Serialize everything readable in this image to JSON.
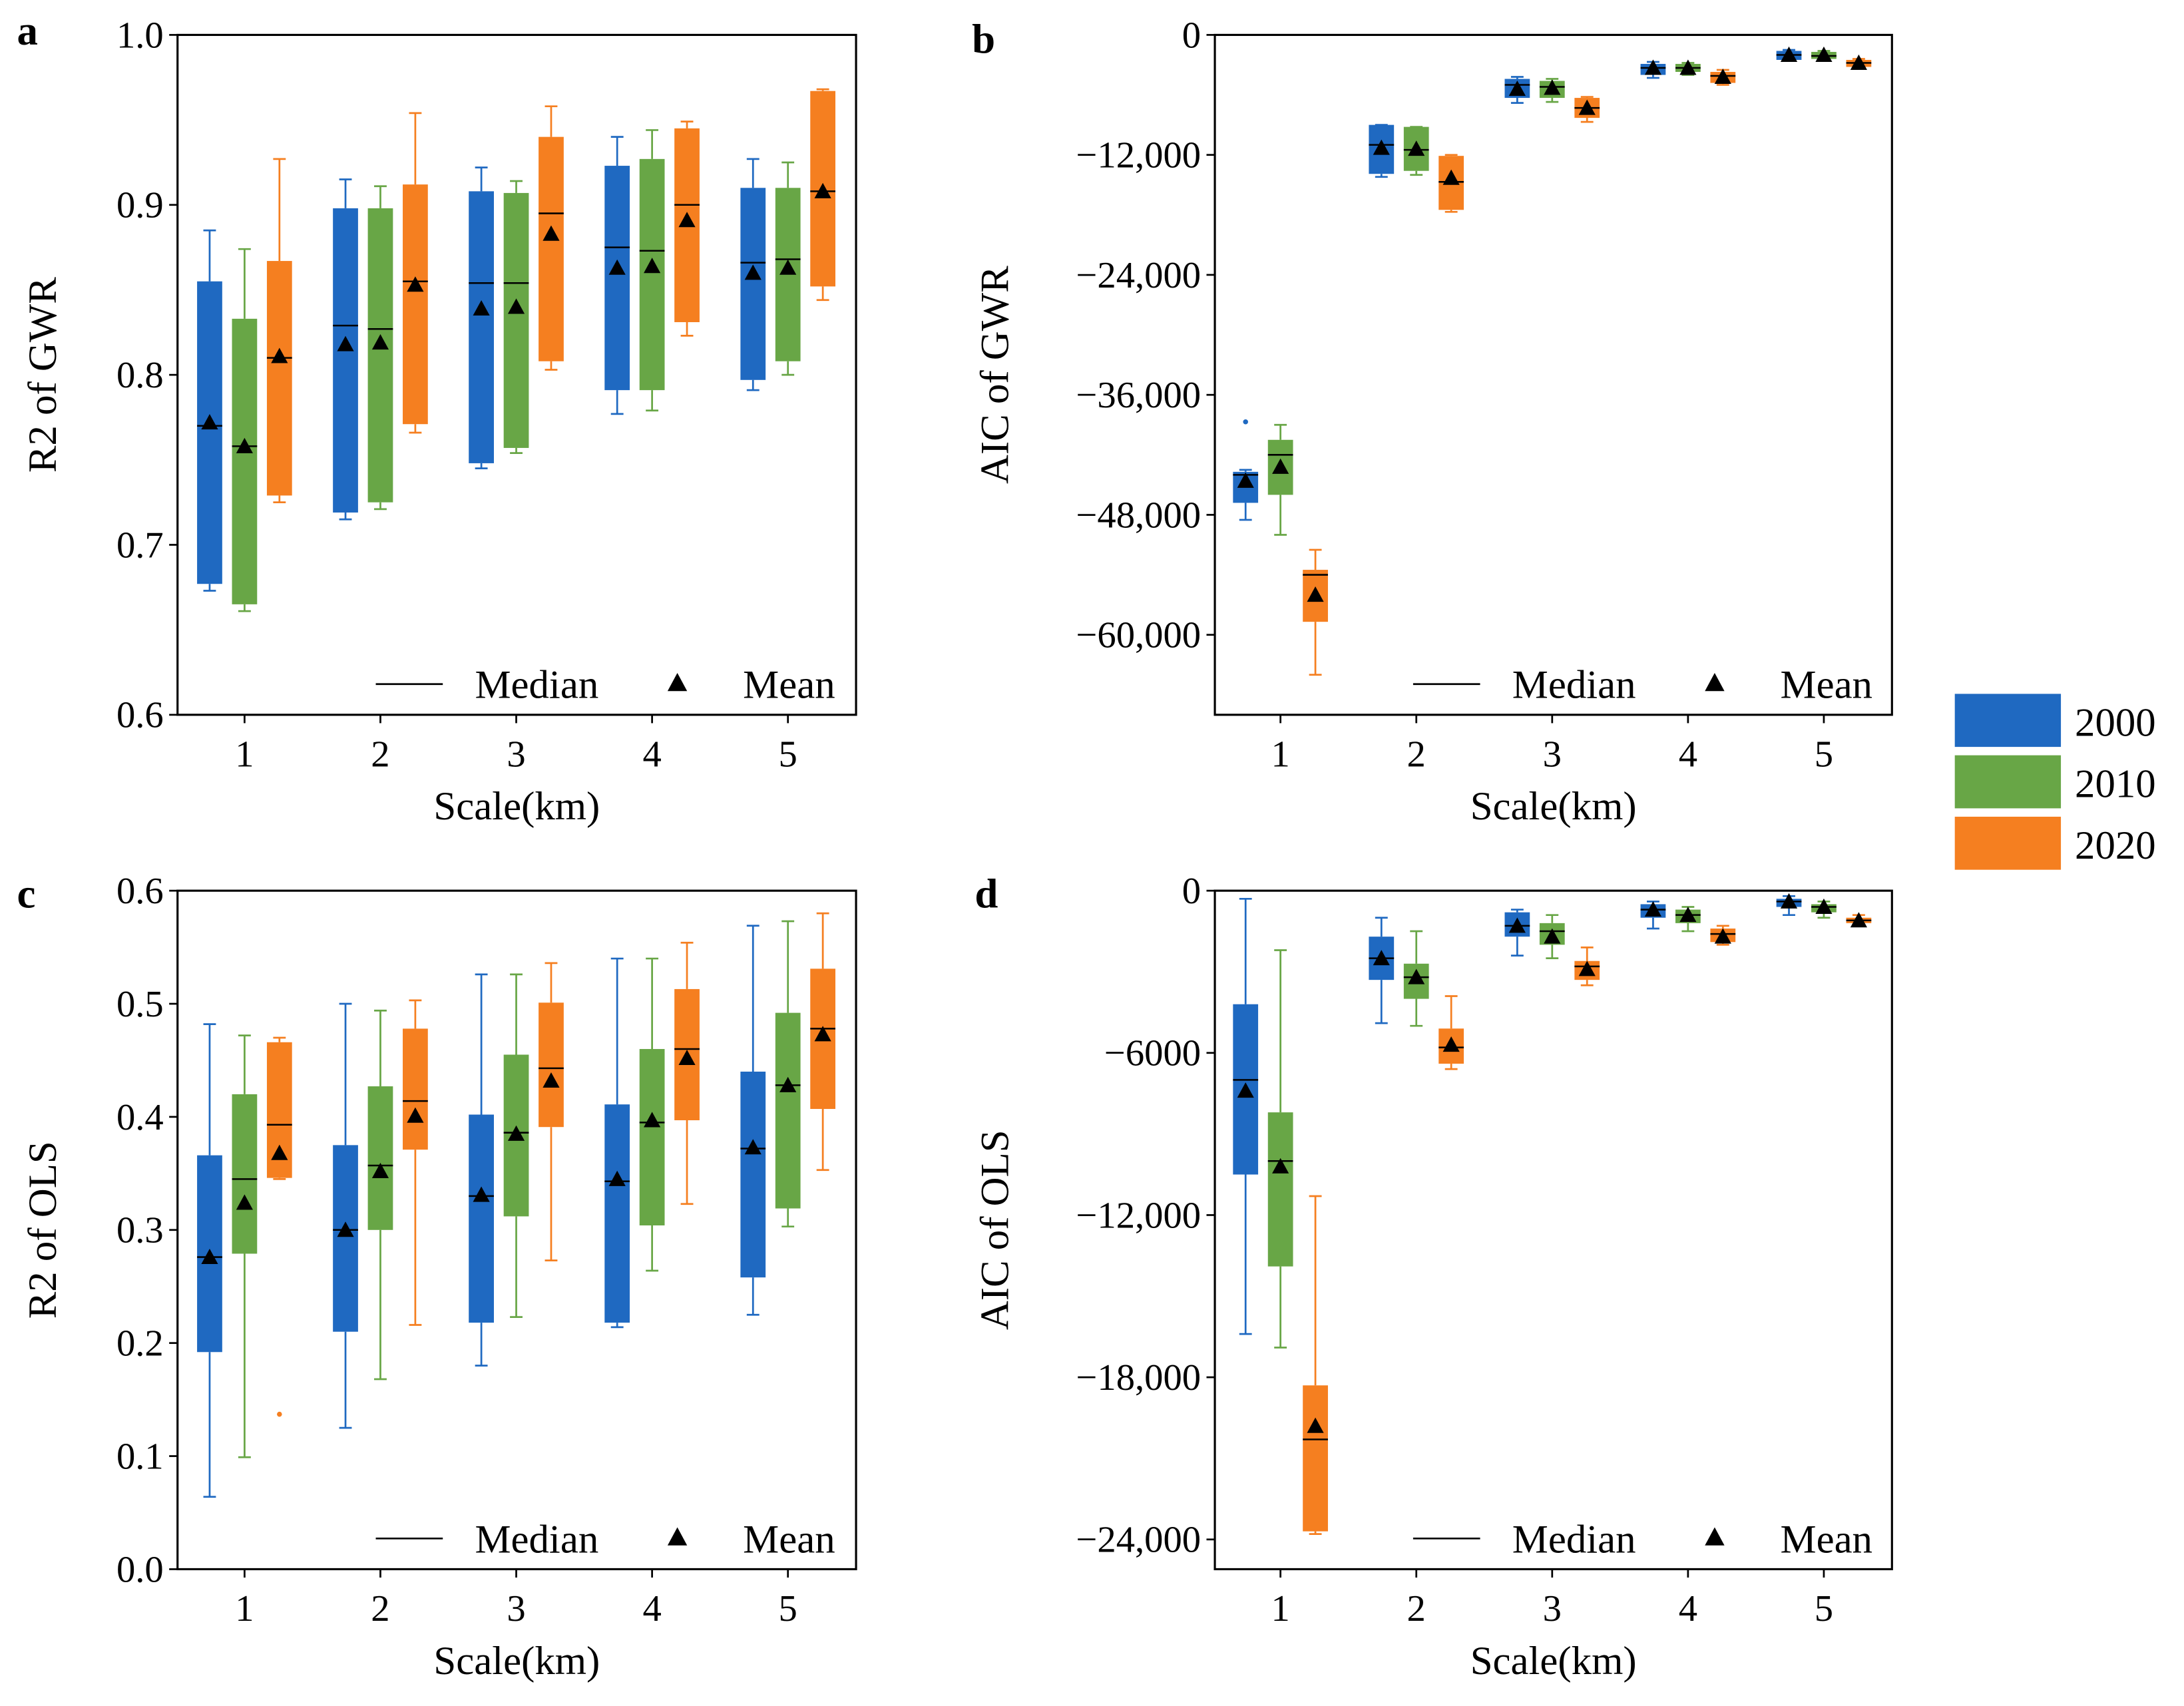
{
  "legend": {
    "items": [
      {
        "label": "2000",
        "color": "#1f69c1"
      },
      {
        "label": "2010",
        "color": "#68a646"
      },
      {
        "label": "2020",
        "color": "#f57f20"
      }
    ]
  },
  "inner_legend": {
    "median": "Median",
    "mean": "Mean"
  },
  "chart_data": [
    {
      "panel": "a",
      "type": "box",
      "title": "",
      "xlabel": "Scale(km)",
      "ylabel": "R2 of GWR",
      "categories": [
        "1",
        "2",
        "3",
        "4",
        "5"
      ],
      "ylim": [
        0.6,
        1.0
      ],
      "yticks": [
        "0.6",
        "0.7",
        "0.8",
        "0.9",
        "1.0"
      ],
      "ytick_values": [
        0.6,
        0.7,
        0.8,
        0.9,
        1.0
      ],
      "series": [
        {
          "name": "2000",
          "boxes": [
            [
              0.673,
              0.677,
              0.77,
              0.855,
              0.885,
              0.772
            ],
            [
              0.715,
              0.719,
              0.829,
              0.898,
              0.915,
              0.818
            ],
            [
              0.745,
              0.748,
              0.854,
              0.908,
              0.922,
              0.839
            ],
            [
              0.777,
              0.791,
              0.875,
              0.923,
              0.94,
              0.863
            ],
            [
              0.791,
              0.797,
              0.866,
              0.91,
              0.927,
              0.86
            ]
          ]
        },
        {
          "name": "2010",
          "boxes": [
            [
              0.661,
              0.665,
              0.758,
              0.833,
              0.874,
              0.758
            ],
            [
              0.721,
              0.725,
              0.827,
              0.898,
              0.911,
              0.819
            ],
            [
              0.754,
              0.757,
              0.854,
              0.907,
              0.914,
              0.84
            ],
            [
              0.779,
              0.791,
              0.873,
              0.927,
              0.944,
              0.864
            ],
            [
              0.8,
              0.808,
              0.868,
              0.91,
              0.925,
              0.863
            ]
          ]
        },
        {
          "name": "2020",
          "boxes": [
            [
              0.725,
              0.729,
              0.81,
              0.867,
              0.927,
              0.811
            ],
            [
              0.766,
              0.771,
              0.855,
              0.912,
              0.954,
              0.853
            ],
            [
              0.803,
              0.808,
              0.895,
              0.94,
              0.958,
              0.883
            ],
            [
              0.823,
              0.831,
              0.9,
              0.945,
              0.949,
              0.891
            ],
            [
              0.844,
              0.852,
              0.908,
              0.967,
              0.968,
              0.908
            ]
          ]
        }
      ],
      "fliers": []
    },
    {
      "panel": "b",
      "type": "box",
      "title": "",
      "xlabel": "Scale(km)",
      "ylabel": "AIC of GWR",
      "categories": [
        "1",
        "2",
        "3",
        "4",
        "5"
      ],
      "ylim": [
        -68000,
        0
      ],
      "yticks": [
        "−60,000",
        "−48,000",
        "−36,000",
        "−24,000",
        "−12,000",
        "0"
      ],
      "ytick_values": [
        -60000,
        -48000,
        -36000,
        -24000,
        -12000,
        0
      ],
      "series": [
        {
          "name": "2000",
          "boxes": [
            [
              -48500,
              -46800,
              -44000,
              -43700,
              -43500,
              -44600
            ],
            [
              -14200,
              -13900,
              -11000,
              -9000,
              -9000,
              -11300
            ],
            [
              -6800,
              -6300,
              -5000,
              -4400,
              -4200,
              -5400
            ],
            [
              -4300,
              -4000,
              -3300,
              -2900,
              -2700,
              -3300
            ],
            [
              -2600,
              -2500,
              -2000,
              -1600,
              -1500,
              -2000
            ]
          ]
        },
        {
          "name": "2010",
          "boxes": [
            [
              -50000,
              -46000,
              -42000,
              -40500,
              -39000,
              -43200
            ],
            [
              -14000,
              -13600,
              -11500,
              -9200,
              -9200,
              -11400
            ],
            [
              -6700,
              -6300,
              -5200,
              -4600,
              -4400,
              -5300
            ],
            [
              -4000,
              -3700,
              -3300,
              -2900,
              -2800,
              -3300
            ],
            [
              -2500,
              -2400,
              -2100,
              -1700,
              -1600,
              -2000
            ]
          ]
        },
        {
          "name": "2020",
          "boxes": [
            [
              -64000,
              -58700,
              -54000,
              -53500,
              -51500,
              -56000
            ],
            [
              -17700,
              -17500,
              -14700,
              -12100,
              -12000,
              -14300
            ],
            [
              -8700,
              -8300,
              -7300,
              -6300,
              -6200,
              -7300
            ],
            [
              -5000,
              -4800,
              -4100,
              -3700,
              -3500,
              -4200
            ],
            [
              -3300,
              -3200,
              -2800,
              -2500,
              -2400,
              -2800
            ]
          ]
        }
      ],
      "fliers": [
        {
          "series": "2000",
          "category": "1",
          "value": -38700
        }
      ]
    },
    {
      "panel": "c",
      "type": "box",
      "title": "",
      "xlabel": "Scale(km)",
      "ylabel": "R2 of OLS",
      "categories": [
        "1",
        "2",
        "3",
        "4",
        "5"
      ],
      "ylim": [
        0.0,
        0.6
      ],
      "yticks": [
        "0.0",
        "0.1",
        "0.2",
        "0.3",
        "0.4",
        "0.5",
        "0.6"
      ],
      "ytick_values": [
        0,
        0.1,
        0.2,
        0.3,
        0.4,
        0.5,
        0.6
      ],
      "series": [
        {
          "name": "2000",
          "boxes": [
            [
              0.064,
              0.192,
              0.276,
              0.366,
              0.482,
              0.276
            ],
            [
              0.125,
              0.21,
              0.3,
              0.375,
              0.5,
              0.3
            ],
            [
              0.18,
              0.218,
              0.33,
              0.402,
              0.526,
              0.331
            ],
            [
              0.214,
              0.218,
              0.343,
              0.411,
              0.54,
              0.345
            ],
            [
              0.225,
              0.258,
              0.372,
              0.44,
              0.569,
              0.373
            ]
          ]
        },
        {
          "name": "2010",
          "boxes": [
            [
              0.099,
              0.279,
              0.345,
              0.42,
              0.472,
              0.324
            ],
            [
              0.168,
              0.3,
              0.357,
              0.427,
              0.494,
              0.352
            ],
            [
              0.223,
              0.312,
              0.386,
              0.455,
              0.526,
              0.385
            ],
            [
              0.264,
              0.304,
              0.395,
              0.46,
              0.54,
              0.397
            ],
            [
              0.303,
              0.319,
              0.428,
              0.492,
              0.573,
              0.428
            ]
          ]
        },
        {
          "name": "2020",
          "boxes": [
            [
              0.345,
              0.346,
              0.393,
              0.466,
              0.47,
              0.368
            ],
            [
              0.216,
              0.371,
              0.414,
              0.478,
              0.503,
              0.401
            ],
            [
              0.273,
              0.391,
              0.443,
              0.501,
              0.536,
              0.432
            ],
            [
              0.323,
              0.397,
              0.46,
              0.513,
              0.554,
              0.452
            ],
            [
              0.353,
              0.407,
              0.478,
              0.531,
              0.58,
              0.473
            ]
          ]
        }
      ],
      "fliers": [
        {
          "series": "2020",
          "category": "1",
          "value": 0.137
        }
      ]
    },
    {
      "panel": "d",
      "type": "box",
      "title": "",
      "xlabel": "Scale(km)",
      "ylabel": "AIC of OLS",
      "categories": [
        "1",
        "2",
        "3",
        "4",
        "5"
      ],
      "ylim": [
        -25100,
        0
      ],
      "yticks": [
        "−24,000",
        "−18,000",
        "−12,000",
        "−6000",
        "0"
      ],
      "ytick_values": [
        -24000,
        -18000,
        -12000,
        -6000,
        0
      ],
      "series": [
        {
          "name": "2000",
          "boxes": [
            [
              -16400,
              -10500,
              -7000,
              -4200,
              -300,
              -7400
            ],
            [
              -4900,
              -3300,
              -2500,
              -1700,
              -1000,
              -2500
            ],
            [
              -2400,
              -1700,
              -1300,
              -800,
              -700,
              -1300
            ],
            [
              -1400,
              -1000,
              -700,
              -500,
              -400,
              -700
            ],
            [
              -900,
              -600,
              -400,
              -300,
              -200,
              -400
            ]
          ]
        },
        {
          "name": "2010",
          "boxes": [
            [
              -16900,
              -13900,
              -10000,
              -8200,
              -2200,
              -10200
            ],
            [
              -5000,
              -4000,
              -3200,
              -2700,
              -1500,
              -3200
            ],
            [
              -2500,
              -2000,
              -1500,
              -1200,
              -900,
              -1700
            ],
            [
              -1500,
              -1200,
              -900,
              -700,
              -600,
              -900
            ],
            [
              -1000,
              -800,
              -600,
              -500,
              -400,
              -600
            ]
          ]
        },
        {
          "name": "2020",
          "boxes": [
            [
              -23800,
              -23700,
              -20300,
              -18300,
              -11300,
              -19800
            ],
            [
              -6600,
              -6400,
              -5800,
              -5100,
              -3900,
              -5700
            ],
            [
              -3500,
              -3300,
              -2800,
              -2600,
              -2100,
              -2900
            ],
            [
              -2000,
              -1900,
              -1600,
              -1400,
              -1300,
              -1700
            ],
            [
              -1300,
              -1200,
              -1100,
              -1000,
              -900,
              -1100
            ]
          ]
        }
      ],
      "fliers": []
    }
  ],
  "box_fields": [
    "whisker_low",
    "q1",
    "median",
    "q3",
    "whisker_high",
    "mean"
  ]
}
